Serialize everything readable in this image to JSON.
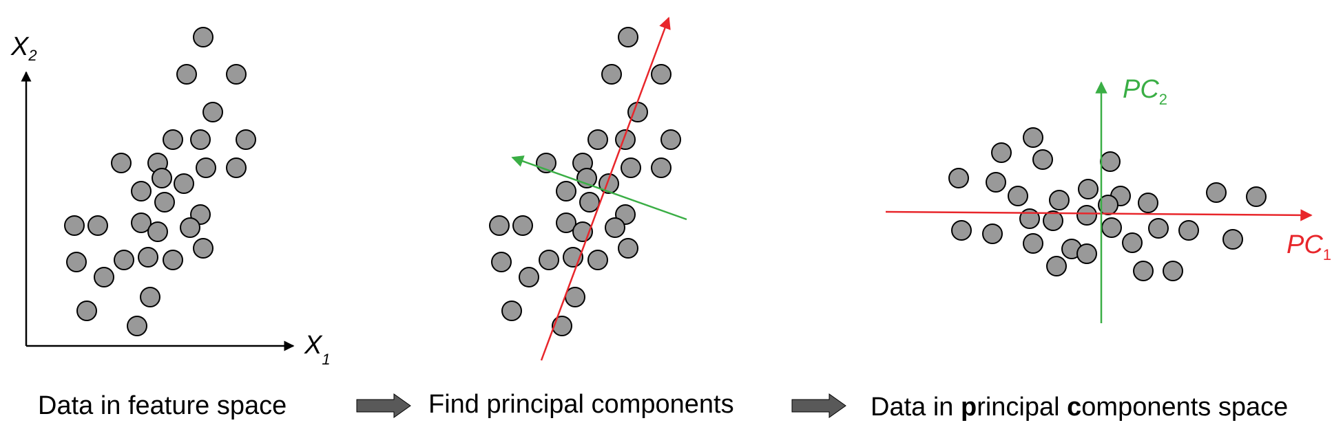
{
  "panel1": {
    "y_label": "X",
    "y_sub": "2",
    "x_label": "X",
    "x_sub": "1"
  },
  "panel3": {
    "pc2_label": "PC",
    "pc2_sub": "2",
    "pc1_label": "PC",
    "pc1_sub": "1"
  },
  "captions": {
    "step1": "Data in feature space",
    "step2": "Find principal components",
    "step3_part1": "Data in ",
    "step3_bold1": "p",
    "step3_part2": "rincipal ",
    "step3_bold2": "c",
    "step3_part3": "omponents space"
  },
  "colors": {
    "point_fill": "#999999",
    "point_stroke": "#000000",
    "axis": "#000000",
    "pc1": "#e8262b",
    "pc2": "#3aae45",
    "flow_arrow": "#595959"
  },
  "icons": {
    "flow_arrow": "right-arrow-icon"
  }
}
